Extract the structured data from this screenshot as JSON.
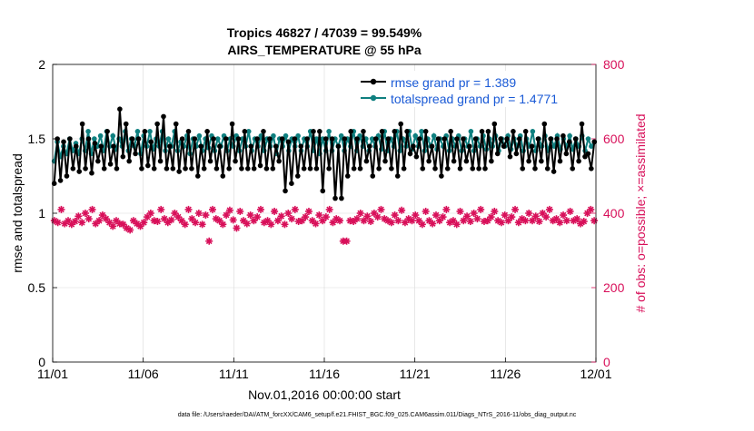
{
  "chart_data": {
    "type": "line",
    "title": "Tropics 46827 / 47039 = 99.549%",
    "subtitle": "AIRS_TEMPERATURE @ 55 hPa",
    "xlabel": "Nov.01,2016 00:00:00 start",
    "ylabel": "rmse and totalspread",
    "ylabel_right": "# of obs: o=possible; ×=assimilated",
    "footnote": "data file: /Users/raeder/DAI/ATM_forcXX/CAM6_setup/f.e21.FHIST_BGC.f09_025.CAM6assim.011/Diags_NTrS_2016-11/obs_diag_output.nc",
    "x_ticks": [
      "11/01",
      "11/06",
      "11/11",
      "11/16",
      "11/21",
      "11/26",
      "12/01"
    ],
    "xlim": [
      0,
      30
    ],
    "ylim": [
      0,
      2
    ],
    "y_ticks": [
      "0",
      "0.5",
      "1",
      "1.5",
      "2"
    ],
    "ylim_right": [
      0,
      800
    ],
    "y_ticks_right": [
      "0",
      "200",
      "400",
      "600",
      "800"
    ],
    "grid": true,
    "legend_position": "top-right",
    "colors": {
      "rmse": "#000000",
      "totalspread": "#0f8080",
      "obs": "#d8105a",
      "legend_text": "#1a5ad6",
      "grid": "#d9d9d9"
    },
    "series": [
      {
        "name": "rmse grand pr = 1.389",
        "axis": "left",
        "values": [
          1.2,
          1.5,
          1.22,
          1.48,
          1.25,
          1.5,
          1.3,
          1.45,
          1.28,
          1.6,
          1.3,
          1.5,
          1.27,
          1.47,
          1.35,
          1.45,
          1.3,
          1.55,
          1.33,
          1.45,
          1.3,
          1.7,
          1.38,
          1.6,
          1.35,
          1.5,
          1.4,
          1.5,
          1.3,
          1.55,
          1.32,
          1.48,
          1.3,
          1.6,
          1.35,
          1.65,
          1.3,
          1.45,
          1.3,
          1.6,
          1.28,
          1.5,
          1.3,
          1.55,
          1.3,
          1.5,
          1.25,
          1.45,
          1.3,
          1.55,
          1.35,
          1.5,
          1.3,
          1.45,
          1.25,
          1.5,
          1.3,
          1.6,
          1.35,
          1.5,
          1.3,
          1.55,
          1.3,
          1.45,
          1.3,
          1.5,
          1.32,
          1.55,
          1.3,
          1.5,
          1.3,
          1.45,
          1.35,
          1.5,
          1.15,
          1.48,
          1.2,
          1.5,
          1.25,
          1.45,
          1.3,
          1.5,
          1.3,
          1.55,
          1.3,
          1.55,
          1.15,
          1.5,
          1.3,
          1.5,
          1.1,
          1.45,
          1.1,
          1.5,
          1.25,
          1.55,
          1.3,
          1.5,
          1.3,
          1.55,
          1.35,
          1.45,
          1.25,
          1.5,
          1.3,
          1.55,
          1.35,
          1.5,
          1.3,
          1.55,
          1.25,
          1.6,
          1.3,
          1.55,
          1.4,
          1.45,
          1.38,
          1.5,
          1.3,
          1.55,
          1.35,
          1.45,
          1.3,
          1.5,
          1.25,
          1.5,
          1.3,
          1.55,
          1.35,
          1.5,
          1.3,
          1.5,
          1.35,
          1.45,
          1.3,
          1.5,
          1.3,
          1.55,
          1.3,
          1.55,
          1.35,
          1.6,
          1.4,
          1.5,
          1.45,
          1.5,
          1.38,
          1.55,
          1.4,
          1.5,
          1.3,
          1.55,
          1.35,
          1.45,
          1.3,
          1.5,
          1.35,
          1.6,
          1.3,
          1.5,
          1.28,
          1.5,
          1.35,
          1.52,
          1.4,
          1.48,
          1.3,
          1.5,
          1.35,
          1.6,
          1.38,
          1.4,
          1.3,
          1.48
        ],
        "marker": "dot"
      },
      {
        "name": "totalspread grand pr = 1.4771",
        "axis": "left",
        "values": [
          1.35,
          1.48,
          1.38,
          1.45,
          1.4,
          1.5,
          1.42,
          1.47,
          1.4,
          1.5,
          1.42,
          1.55,
          1.4,
          1.5,
          1.45,
          1.52,
          1.42,
          1.55,
          1.45,
          1.52,
          1.43,
          1.5,
          1.45,
          1.55,
          1.42,
          1.5,
          1.45,
          1.55,
          1.4,
          1.52,
          1.45,
          1.55,
          1.43,
          1.5,
          1.45,
          1.55,
          1.42,
          1.5,
          1.45,
          1.55,
          1.42,
          1.48,
          1.45,
          1.52,
          1.4,
          1.5,
          1.45,
          1.52,
          1.42,
          1.5,
          1.44,
          1.52,
          1.42,
          1.5,
          1.45,
          1.52,
          1.42,
          1.5,
          1.45,
          1.52,
          1.42,
          1.5,
          1.45,
          1.55,
          1.42,
          1.5,
          1.45,
          1.52,
          1.42,
          1.5,
          1.45,
          1.52,
          1.4,
          1.5,
          1.45,
          1.52,
          1.42,
          1.5,
          1.45,
          1.52,
          1.42,
          1.5,
          1.45,
          1.55,
          1.42,
          1.5,
          1.4,
          1.5,
          1.42,
          1.55,
          1.42,
          1.5,
          1.45,
          1.52,
          1.42,
          1.5,
          1.45,
          1.55,
          1.42,
          1.52,
          1.45,
          1.5,
          1.42,
          1.5,
          1.45,
          1.52,
          1.43,
          1.55,
          1.42,
          1.5,
          1.45,
          1.55,
          1.42,
          1.5,
          1.45,
          1.55,
          1.43,
          1.52,
          1.45,
          1.55,
          1.42,
          1.5,
          1.45,
          1.52,
          1.43,
          1.5,
          1.45,
          1.52,
          1.42,
          1.5,
          1.45,
          1.52,
          1.42,
          1.5,
          1.45,
          1.55,
          1.42,
          1.5,
          1.45,
          1.52,
          1.43,
          1.5,
          1.45,
          1.52,
          1.42,
          1.5,
          1.45,
          1.52,
          1.43,
          1.5,
          1.45,
          1.52,
          1.42,
          1.5,
          1.45,
          1.55,
          1.42,
          1.5,
          1.45,
          1.52,
          1.42,
          1.5,
          1.45,
          1.52,
          1.43,
          1.5,
          1.45,
          1.52,
          1.43,
          1.5,
          1.45,
          1.52,
          1.42,
          1.5,
          1.45,
          1.48
        ],
        "marker": "dot"
      },
      {
        "axis": "right",
        "values": [
          380,
          375,
          410,
          372,
          380,
          370,
          378,
          392,
          375,
          400,
          385,
          410,
          372,
          380,
          395,
          385,
          375,
          365,
          380,
          372,
          370,
          360,
          355,
          380,
          372,
          365,
          375,
          390,
          400,
          380,
          378,
          410,
          385,
          375,
          382,
          400,
          390,
          380,
          370,
          410,
          385,
          375,
          400,
          370,
          395,
          325,
          410,
          385,
          380,
          370,
          395,
          408,
          382,
          360,
          405,
          380,
          372,
          395,
          380,
          390,
          410,
          375,
          380,
          370,
          405,
          380,
          392,
          370,
          400,
          385,
          410,
          378,
          380,
          390,
          405,
          380,
          372,
          395,
          380,
          390,
          410,
          375,
          385,
          380,
          325,
          325,
          380,
          378,
          385,
          400,
          380,
          392,
          378,
          400,
          390,
          410,
          385,
          380,
          375,
          395,
          380,
          408,
          375,
          385,
          380,
          395,
          380,
          370,
          405,
          380,
          372,
          395,
          380,
          390,
          410,
          375,
          380,
          370,
          405,
          380,
          392,
          378,
          400,
          385,
          410,
          378,
          380,
          390,
          405,
          380,
          375,
          395,
          380,
          390,
          410,
          375,
          385,
          380,
          400,
          380,
          392,
          378,
          400,
          390,
          410,
          380,
          385,
          375,
          395,
          380,
          405,
          380,
          385,
          372,
          378,
          400,
          410,
          380
        ],
        "marker": "asterisk"
      }
    ]
  }
}
